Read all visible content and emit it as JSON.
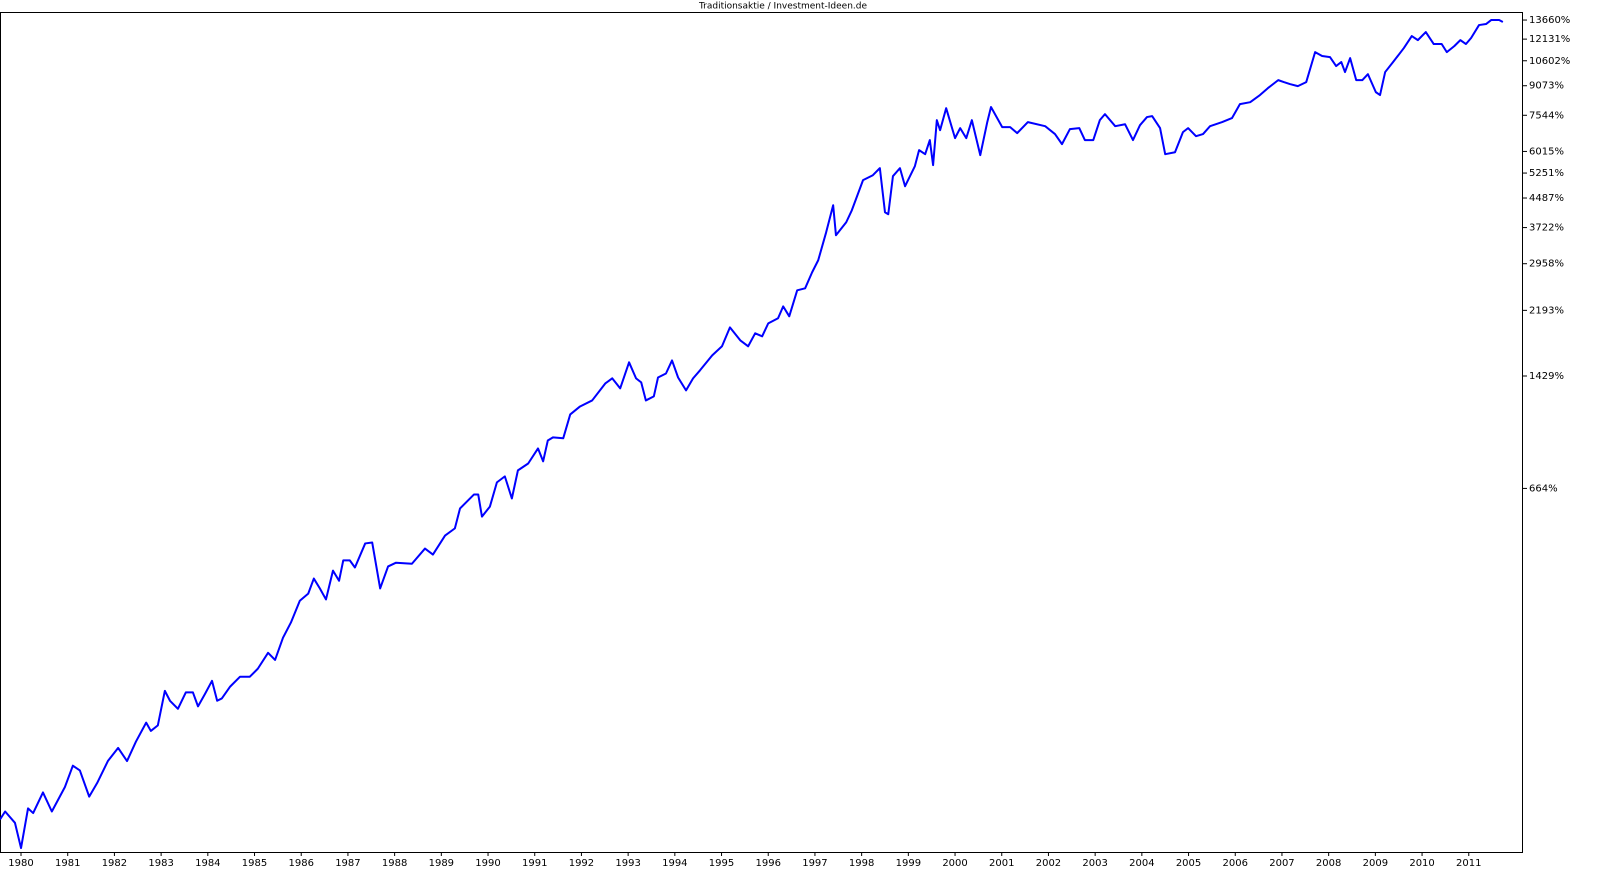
{
  "chart_data": {
    "type": "line",
    "title": "Traditionsaktie /  Investment-Ideen.de",
    "color": "#0000ff",
    "yscale": "log",
    "log_offset": 100,
    "xlim": [
      1979.55,
      2012.14
    ],
    "xticks": [
      1980,
      1981,
      1982,
      1983,
      1984,
      1985,
      1986,
      1987,
      1988,
      1989,
      1990,
      1991,
      1992,
      1993,
      1994,
      1995,
      1996,
      1997,
      1998,
      1999,
      2000,
      2001,
      2002,
      2003,
      2004,
      2005,
      2006,
      2007,
      2008,
      2009,
      2010,
      2011
    ],
    "ylim": [
      -19,
      14360
    ],
    "yticks": [
      {
        "value": 13660,
        "label": "13660%"
      },
      {
        "value": 12131,
        "label": "12131%"
      },
      {
        "value": 10602,
        "label": "10602%"
      },
      {
        "value": 9073,
        "label": "9073%"
      },
      {
        "value": 7544,
        "label": "7544%"
      },
      {
        "value": 6015,
        "label": "6015%"
      },
      {
        "value": 5251,
        "label": "5251%"
      },
      {
        "value": 4487,
        "label": "4487%"
      },
      {
        "value": 3722,
        "label": "3722%"
      },
      {
        "value": 2958,
        "label": "2958%"
      },
      {
        "value": 2193,
        "label": "2193%"
      },
      {
        "value": 1429,
        "label": "1429%"
      },
      {
        "value": 664,
        "label": "664%"
      }
    ],
    "x": [
      1979.55,
      1979.66,
      1979.87,
      1980.0,
      1980.15,
      1980.26,
      1980.47,
      1980.66,
      1980.94,
      1981.11,
      1981.26,
      1981.46,
      1981.63,
      1981.86,
      1982.08,
      1982.27,
      1982.46,
      1982.68,
      1982.78,
      1982.93,
      1983.08,
      1983.19,
      1983.36,
      1983.53,
      1983.68,
      1983.79,
      1983.94,
      1984.09,
      1984.2,
      1984.3,
      1984.48,
      1984.69,
      1984.9,
      1985.07,
      1985.29,
      1985.44,
      1985.61,
      1985.78,
      1985.97,
      1986.15,
      1986.27,
      1986.4,
      1986.53,
      1986.68,
      1986.81,
      1986.9,
      1987.04,
      1987.15,
      1987.37,
      1987.52,
      1987.69,
      1987.86,
      1988.03,
      1988.37,
      1988.65,
      1988.82,
      1989.08,
      1989.29,
      1989.4,
      1989.7,
      1989.79,
      1989.87,
      1990.04,
      1990.19,
      1990.36,
      1990.51,
      1990.64,
      1990.86,
      1991.07,
      1991.18,
      1991.28,
      1991.39,
      1991.61,
      1991.76,
      1991.97,
      1992.23,
      1992.51,
      1992.66,
      1992.83,
      1993.02,
      1993.17,
      1993.28,
      1993.38,
      1993.55,
      1993.64,
      1993.81,
      1993.94,
      1994.07,
      1994.24,
      1994.39,
      1994.54,
      1994.8,
      1995.01,
      1995.18,
      1995.4,
      1995.57,
      1995.72,
      1995.87,
      1996.0,
      1996.21,
      1996.32,
      1996.45,
      1996.62,
      1996.79,
      1996.94,
      1997.07,
      1997.24,
      1997.39,
      1997.45,
      1997.67,
      1997.79,
      1998.03,
      1998.24,
      1998.39,
      1998.5,
      1998.57,
      1998.67,
      1998.82,
      1998.93,
      1999.14,
      1999.23,
      1999.36,
      1999.46,
      1999.53,
      1999.61,
      1999.68,
      1999.81,
      2000.0,
      2000.11,
      2000.24,
      2000.36,
      2000.54,
      2000.69,
      2000.77,
      2001.01,
      2001.18,
      2001.33,
      2001.56,
      2001.93,
      2002.14,
      2002.29,
      2002.46,
      2002.66,
      2002.78,
      2002.96,
      2003.1,
      2003.21,
      2003.43,
      2003.64,
      2003.81,
      2003.96,
      2004.11,
      2004.22,
      2004.39,
      2004.5,
      2004.71,
      2004.88,
      2004.99,
      2005.16,
      2005.31,
      2005.46,
      2005.72,
      2005.93,
      2006.1,
      2006.32,
      2006.53,
      2006.7,
      2006.92,
      2007.04,
      2007.17,
      2007.34,
      2007.52,
      2007.71,
      2007.86,
      2008.03,
      2008.16,
      2008.27,
      2008.35,
      2008.46,
      2008.59,
      2008.72,
      2008.84,
      2009.01,
      2009.1,
      2009.21,
      2009.38,
      2009.61,
      2009.78,
      2009.91,
      2010.08,
      2010.25,
      2010.42,
      2010.53,
      2010.69,
      2010.82,
      2010.94,
      2011.05,
      2011.22,
      2011.37,
      2011.48,
      2011.65,
      2011.73
    ],
    "values": [
      -1,
      4,
      -3,
      -17,
      6,
      3,
      17,
      4,
      21,
      38,
      34,
      14,
      24,
      42,
      54,
      42,
      60,
      80,
      71,
      77,
      119,
      106,
      96,
      117,
      117,
      99,
      115,
      133,
      106,
      109,
      125,
      139,
      139,
      151,
      177,
      165,
      204,
      234,
      282,
      299,
      338,
      312,
      285,
      360,
      332,
      390,
      390,
      369,
      444,
      447,
      312,
      372,
      383,
      380,
      427,
      408,
      471,
      497,
      575,
      636,
      636,
      542,
      583,
      693,
      723,
      618,
      754,
      791,
      878,
      803,
      927,
      947,
      941,
      1106,
      1167,
      1215,
      1360,
      1407,
      1317,
      1564,
      1407,
      1370,
      1215,
      1248,
      1415,
      1453,
      1583,
      1415,
      1299,
      1407,
      1484,
      1637,
      1737,
      1964,
      1806,
      1737,
      1890,
      1854,
      2016,
      2084,
      2250,
      2110,
      2495,
      2527,
      2801,
      3024,
      3612,
      4288,
      3546,
      3850,
      4153,
      5023,
      5180,
      5416,
      4102,
      4050,
      5148,
      5416,
      4833,
      5484,
      6064,
      5912,
      6458,
      5518,
      7317,
      6871,
      7886,
      6538,
      6962,
      6538,
      7317,
      5876,
      7229,
      7943,
      7004,
      7004,
      6747,
      7229,
      7047,
      6706,
      6297,
      6920,
      6962,
      6458,
      6458,
      7317,
      7597,
      7047,
      7134,
      6458,
      7091,
      7460,
      7505,
      6962,
      5912,
      5985,
      6788,
      6962,
      6619,
      6706,
      7047,
      7229,
      7413,
      8089,
      8188,
      8561,
      8940,
      9396,
      9282,
      9169,
      9050,
      9282,
      11189,
      10920,
      10843,
      10259,
      10520,
      9881,
      10779,
      9396,
      9396,
      9754,
      8718,
      8561,
      9881,
      10520,
      11474,
      12362,
      12056,
      12679,
      11767,
      11767,
      11189,
      11614,
      12056,
      11767,
      12214,
      13240,
      13324,
      13660,
      13660,
      13491
    ]
  }
}
